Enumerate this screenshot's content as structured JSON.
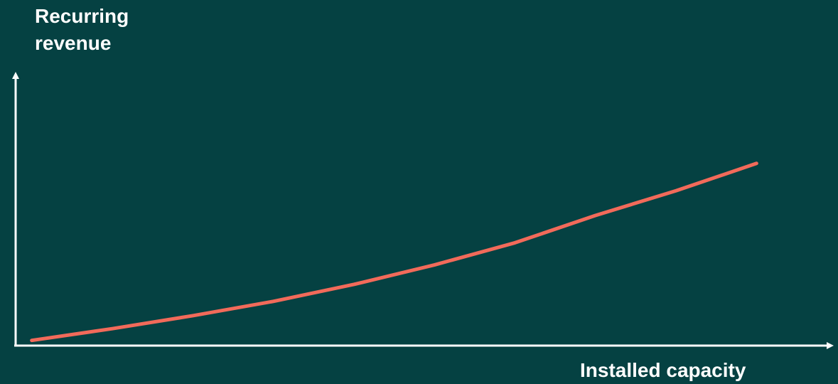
{
  "colors": {
    "background": "#054142",
    "axis": "#ffffff",
    "line": "#f26a5a",
    "text": "#ffffff"
  },
  "chart_data": {
    "type": "line",
    "title": "",
    "xlabel": "Installed capacity",
    "ylabel": "Recurring\nrevenue",
    "x_ticks": [],
    "y_ticks": [],
    "grid": false,
    "legend": "none",
    "xlim": [
      0,
      10
    ],
    "ylim": [
      0,
      10
    ],
    "series": [
      {
        "x": [
          0.2,
          1.2,
          2.2,
          3.2,
          4.2,
          5.2,
          6.2,
          7.2,
          8.2,
          9.2
        ],
        "y": [
          0.2,
          0.65,
          1.15,
          1.7,
          2.35,
          3.1,
          3.95,
          5.0,
          5.95,
          7.0
        ]
      }
    ]
  }
}
